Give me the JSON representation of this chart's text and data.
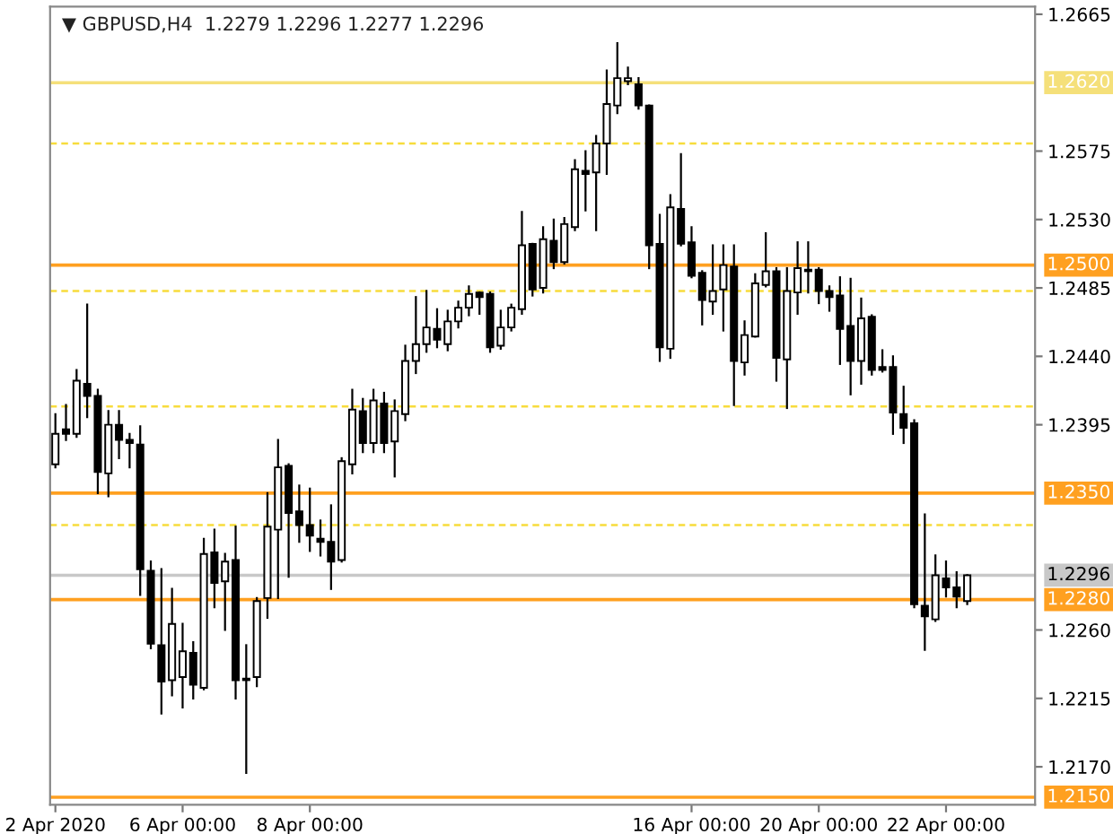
{
  "chart_data": {
    "type": "candlestick",
    "title": "▼ GBPUSD,H4  1.2279 1.2296 1.2277 1.2296",
    "categories": [
      "2 Apr 2020",
      null,
      null,
      null,
      null,
      null,
      null,
      null,
      null,
      null,
      null,
      null,
      "6 Apr 00:00",
      null,
      null,
      null,
      null,
      null,
      null,
      null,
      null,
      null,
      null,
      null,
      "8 Apr 00:00",
      null,
      null,
      null,
      null,
      null,
      null,
      null,
      null,
      null,
      null,
      null,
      null,
      null,
      null,
      null,
      null,
      null,
      null,
      null,
      null,
      null,
      null,
      null,
      null,
      null,
      null,
      null,
      null,
      null,
      null,
      null,
      null,
      null,
      null,
      null,
      "16 Apr 00:00",
      null,
      null,
      null,
      null,
      null,
      null,
      null,
      null,
      null,
      null,
      null,
      "20 Apr 00:00",
      null,
      null,
      null,
      null,
      null,
      null,
      null,
      null,
      null,
      null,
      null,
      "22 Apr 00:00",
      null,
      null
    ],
    "ohlc": [
      [
        1.2369,
        1.2402,
        1.2367,
        1.2389
      ],
      [
        1.2392,
        1.2408,
        1.2385,
        1.2389
      ],
      [
        1.2389,
        1.2431,
        1.2387,
        1.2424
      ],
      [
        1.2422,
        1.2474,
        1.24,
        1.2414
      ],
      [
        1.2414,
        1.2418,
        1.235,
        1.2364
      ],
      [
        1.2363,
        1.2404,
        1.2348,
        1.2395
      ],
      [
        1.2395,
        1.2404,
        1.2373,
        1.2385
      ],
      [
        1.2385,
        1.2389,
        1.2367,
        1.2383
      ],
      [
        1.2382,
        1.2394,
        1.2283,
        1.23
      ],
      [
        1.2299,
        1.2305,
        1.2248,
        1.2251
      ],
      [
        1.225,
        1.23,
        1.2205,
        1.2226
      ],
      [
        1.2227,
        1.2287,
        1.2217,
        1.2264
      ],
      [
        1.2229,
        1.2264,
        1.2209,
        1.2246
      ],
      [
        1.2245,
        1.2252,
        1.2215,
        1.2224
      ],
      [
        1.2222,
        1.232,
        1.2221,
        1.231
      ],
      [
        1.2311,
        1.2326,
        1.2275,
        1.2291
      ],
      [
        1.2292,
        1.231,
        1.226,
        1.2305
      ],
      [
        1.2306,
        1.2328,
        1.2215,
        1.2227
      ],
      [
        1.2228,
        1.225,
        1.2166,
        1.2227
      ],
      [
        1.2229,
        1.2281,
        1.2223,
        1.2279
      ],
      [
        1.2281,
        1.235,
        1.2268,
        1.2328
      ],
      [
        1.2326,
        1.2385,
        1.2281,
        1.2367
      ],
      [
        1.2368,
        1.2369,
        1.2295,
        1.2337
      ],
      [
        1.2338,
        1.2355,
        1.2318,
        1.2329
      ],
      [
        1.2329,
        1.2353,
        1.2312,
        1.2322
      ],
      [
        1.232,
        1.2332,
        1.2309,
        1.2318
      ],
      [
        1.2318,
        1.2342,
        1.2287,
        1.2305
      ],
      [
        1.2306,
        1.2373,
        1.2305,
        1.2371
      ],
      [
        1.2369,
        1.2418,
        1.2363,
        1.2405
      ],
      [
        1.2404,
        1.2412,
        1.2377,
        1.2383
      ],
      [
        1.2383,
        1.2418,
        1.2377,
        1.2411
      ],
      [
        1.2409,
        1.2416,
        1.2377,
        1.2383
      ],
      [
        1.2384,
        1.2411,
        1.2361,
        1.2404
      ],
      [
        1.2402,
        1.2447,
        1.2398,
        1.2437
      ],
      [
        1.2437,
        1.2479,
        1.2429,
        1.2448
      ],
      [
        1.2448,
        1.2483,
        1.2443,
        1.2459
      ],
      [
        1.2458,
        1.2471,
        1.2446,
        1.2451
      ],
      [
        1.2448,
        1.247,
        1.2444,
        1.2463
      ],
      [
        1.2463,
        1.2476,
        1.2459,
        1.2472
      ],
      [
        1.2472,
        1.2486,
        1.2467,
        1.2481
      ],
      [
        1.2482,
        1.2482,
        1.2468,
        1.2479
      ],
      [
        1.2481,
        1.2482,
        1.2443,
        1.2446
      ],
      [
        1.2447,
        1.247,
        1.2445,
        1.2459
      ],
      [
        1.2459,
        1.2474,
        1.2457,
        1.2472
      ],
      [
        1.2471,
        1.2535,
        1.2468,
        1.2513
      ],
      [
        1.2514,
        1.2514,
        1.248,
        1.2484
      ],
      [
        1.2485,
        1.2525,
        1.2482,
        1.2517
      ],
      [
        1.2516,
        1.253,
        1.2498,
        1.2502
      ],
      [
        1.2502,
        1.2531,
        1.2501,
        1.2527
      ],
      [
        1.2525,
        1.2569,
        1.2523,
        1.2563
      ],
      [
        1.2562,
        1.2575,
        1.2536,
        1.256
      ],
      [
        1.2561,
        1.2585,
        1.2523,
        1.258
      ],
      [
        1.258,
        1.2628,
        1.256,
        1.2606
      ],
      [
        1.2605,
        1.2646,
        1.26,
        1.2623
      ],
      [
        1.2621,
        1.263,
        1.2619,
        1.2623
      ],
      [
        1.2619,
        1.2623,
        1.2603,
        1.2605
      ],
      [
        1.2605,
        1.2605,
        1.2498,
        1.2513
      ],
      [
        1.2514,
        1.2533,
        1.2437,
        1.2446
      ],
      [
        1.2445,
        1.2546,
        1.2439,
        1.2538
      ],
      [
        1.2537,
        1.2573,
        1.2513,
        1.2514
      ],
      [
        1.2515,
        1.2525,
        1.2492,
        1.2493
      ],
      [
        1.2495,
        1.2496,
        1.2461,
        1.2477
      ],
      [
        1.2476,
        1.2513,
        1.2468,
        1.2483
      ],
      [
        1.2484,
        1.2513,
        1.2457,
        1.25
      ],
      [
        1.2499,
        1.2513,
        1.2408,
        1.2437
      ],
      [
        1.2436,
        1.2463,
        1.2428,
        1.2454
      ],
      [
        1.2453,
        1.2494,
        1.2453,
        1.2488
      ],
      [
        1.2487,
        1.2521,
        1.2486,
        1.2496
      ],
      [
        1.2496,
        1.2498,
        1.2424,
        1.2439
      ],
      [
        1.2438,
        1.2498,
        1.2406,
        1.2483
      ],
      [
        1.2482,
        1.2515,
        1.2468,
        1.2498
      ],
      [
        1.2497,
        1.2515,
        1.2482,
        1.2496
      ],
      [
        1.2497,
        1.2498,
        1.2475,
        1.2483
      ],
      [
        1.2483,
        1.2486,
        1.247,
        1.2479
      ],
      [
        1.248,
        1.2492,
        1.2435,
        1.2458
      ],
      [
        1.246,
        1.2491,
        1.2415,
        1.2437
      ],
      [
        1.2437,
        1.2478,
        1.2422,
        1.2465
      ],
      [
        1.2466,
        1.2467,
        1.2428,
        1.2431
      ],
      [
        1.2433,
        1.2444,
        1.243,
        1.2431
      ],
      [
        1.2433,
        1.244,
        1.2389,
        1.2403
      ],
      [
        1.2402,
        1.242,
        1.2383,
        1.2393
      ],
      [
        1.2396,
        1.2398,
        1.2275,
        1.2277
      ],
      [
        1.2276,
        1.2336,
        1.2247,
        1.2269
      ],
      [
        1.2267,
        1.2309,
        1.2266,
        1.2296
      ],
      [
        1.2294,
        1.2305,
        1.2282,
        1.2288
      ],
      [
        1.2288,
        1.2298,
        1.2275,
        1.2282
      ],
      [
        1.2279,
        1.2296,
        1.2277,
        1.2296
      ]
    ],
    "ylim": [
      1.2145,
      1.267
    ],
    "yticks": [
      1.2665,
      1.2575,
      {
        "value": 1.253,
        "label": "1.2530"
      },
      1.2485,
      {
        "value": 1.244,
        "label": "1.2440"
      },
      1.2395,
      {
        "value": 1.226,
        "label": "1.2260"
      },
      1.2215,
      {
        "value": 1.217,
        "label": "1.2170"
      }
    ],
    "ref_lines": [
      {
        "axis": "y",
        "value": 1.262,
        "label": "1.2620",
        "color": "#f5e07a",
        "line_style": "solid"
      },
      {
        "axis": "y",
        "value": 1.258,
        "color": "#f7dc3c",
        "line_style": "dashed"
      },
      {
        "axis": "y",
        "value": 1.25,
        "label": "1.2500",
        "color": "#ffa020",
        "line_style": "solid"
      },
      {
        "axis": "y",
        "value": 1.2483,
        "color": "#f7dc3c",
        "line_style": "dashed"
      },
      {
        "axis": "y",
        "value": 1.2407,
        "color": "#f7dc3c",
        "line_style": "dashed"
      },
      {
        "axis": "y",
        "value": 1.235,
        "label": "1.2350",
        "color": "#ffa020",
        "line_style": "solid"
      },
      {
        "axis": "y",
        "value": 1.2329,
        "color": "#f7dc3c",
        "line_style": "dashed"
      },
      {
        "axis": "y",
        "value": 1.2296,
        "label": "1.2296",
        "color": "#c8c8c8",
        "line_style": "solid"
      },
      {
        "axis": "y",
        "value": 1.228,
        "label": "1.2280",
        "color": "#ffa020",
        "line_style": "solid"
      },
      {
        "axis": "y",
        "value": 1.215,
        "label": "1.2150",
        "color": "#ffa020",
        "line_style": "solid"
      }
    ],
    "grid": false
  }
}
